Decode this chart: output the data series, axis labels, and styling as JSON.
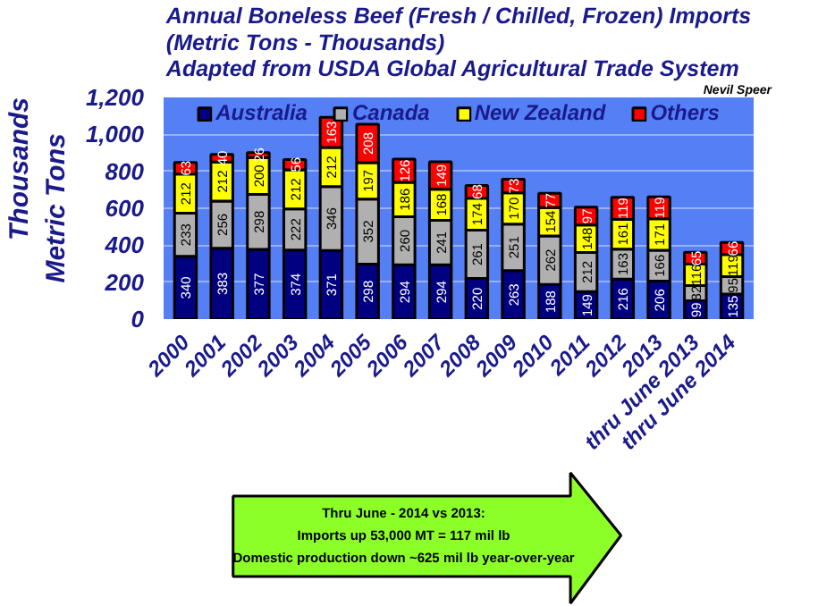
{
  "chart_data": {
    "type": "bar",
    "stacked": true,
    "title": "Annual Boneless Beef (Fresh / Chilled, Frozen) Imports\n(Metric Tons - Thousands)\nAdapted from USDA Global Agricultural Trade System",
    "ylabel": "Metric Tons",
    "annotations": [
      "Thousands",
      "Nevil Speer",
      "Thru June - 2014 vs 2013:\nImports up 53,000 MT = 117 mil lb\nDomestic production down ~625 mil lb year-over-year"
    ],
    "categories": [
      "2000",
      "2001",
      "2002",
      "2003",
      "2004",
      "2005",
      "2006",
      "2007",
      "2008",
      "2009",
      "2010",
      "2011",
      "2012",
      "2013",
      "thru June 2013",
      "thru June 2014"
    ],
    "series": [
      {
        "name": "Australia",
        "color": "#000080",
        "values": [
          340,
          383,
          377,
          374,
          371,
          298,
          294,
          294,
          220,
          263,
          188,
          149,
          216,
          206,
          99,
          135
        ]
      },
      {
        "name": "Canada",
        "color": "#b0b0b0",
        "values": [
          233,
          256,
          298,
          222,
          346,
          352,
          260,
          241,
          261,
          251,
          262,
          212,
          163,
          166,
          82,
          95
        ]
      },
      {
        "name": "New Zealand",
        "color": "#ffff00",
        "values": [
          212,
          212,
          200,
          212,
          212,
          197,
          186,
          168,
          174,
          170,
          154,
          148,
          161,
          171,
          116,
          119
        ]
      },
      {
        "name": "Others",
        "color": "#ff0000",
        "values": [
          63,
          40,
          26,
          56,
          163,
          208,
          126,
          149,
          68,
          73,
          77,
          97,
          119,
          119,
          65,
          66
        ]
      }
    ],
    "ylim": [
      0,
      1200
    ],
    "yticks": [
      0,
      {
        "value": 200,
        "label": "200"
      },
      {
        "value": 400,
        "label": "400"
      },
      {
        "value": 600,
        "label": "600"
      },
      {
        "value": 800,
        "label": "800"
      },
      {
        "value": 1000,
        "label": "1,000"
      },
      {
        "value": 1200,
        "label": "1,200"
      }
    ],
    "grid": "y",
    "legend": "top",
    "data_labels": true
  }
}
